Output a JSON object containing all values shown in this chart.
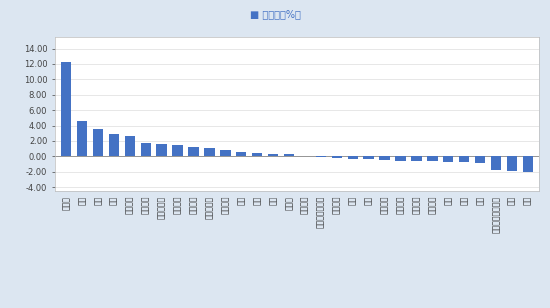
{
  "categories": [
    "房地产",
    "建材",
    "建筑",
    "银行",
    "轻工制造",
    "纺织服装",
    "消费者服务",
    "交通运输",
    "农林牧渔",
    "非银行金融",
    "商贸零售",
    "通信",
    "电子",
    "钢铁",
    "计算机",
    "综合金融",
    "电力及公用事业",
    "食品饮料",
    "传媒",
    "家电",
    "有色金属",
    "石油石化",
    "国防军工",
    "基础化工",
    "汽车",
    "机械",
    "综合",
    "电力设备及新能源",
    "医药",
    "煤炭"
  ],
  "values": [
    12.3,
    4.6,
    3.6,
    2.9,
    2.7,
    1.7,
    1.6,
    1.5,
    1.2,
    1.1,
    0.8,
    0.5,
    0.4,
    0.35,
    0.3,
    0.1,
    -0.1,
    -0.2,
    -0.3,
    -0.4,
    -0.5,
    -0.55,
    -0.6,
    -0.65,
    -0.7,
    -0.75,
    -0.9,
    -1.8,
    -1.9,
    -2.1
  ],
  "bar_color": "#4472C4",
  "ylim": [
    -4.5,
    15.5
  ],
  "yticks": [
    -4.0,
    -2.0,
    0.0,
    2.0,
    4.0,
    6.0,
    8.0,
    10.0,
    12.0,
    14.0
  ],
  "background_color": "#dce6f1",
  "plot_bg_color": "#ffffff",
  "legend_label": "张跌幅（%）"
}
